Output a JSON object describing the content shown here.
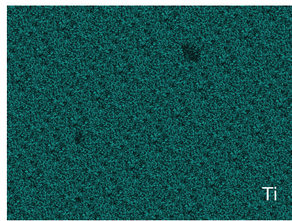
{
  "map": {
    "element_label": "Ti",
    "signal_color": "#1fb8b0",
    "background_color": "#0a1f1f"
  }
}
